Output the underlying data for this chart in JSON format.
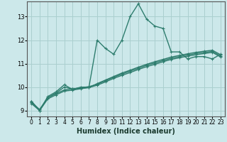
{
  "xlabel": "Humidex (Indice chaleur)",
  "bg_color": "#cce8ea",
  "grid_color": "#aacfcf",
  "line_color": "#2e7d6e",
  "xlim": [
    -0.5,
    23.5
  ],
  "ylim": [
    8.75,
    13.65
  ],
  "yticks": [
    9,
    10,
    11,
    12,
    13
  ],
  "xticks": [
    0,
    1,
    2,
    3,
    4,
    5,
    6,
    7,
    8,
    9,
    10,
    11,
    12,
    13,
    14,
    15,
    16,
    17,
    18,
    19,
    20,
    21,
    22,
    23
  ],
  "series": [
    [
      9.4,
      9.0,
      9.6,
      9.8,
      10.1,
      9.9,
      10.0,
      10.0,
      12.0,
      11.65,
      11.4,
      12.0,
      13.0,
      13.55,
      12.9,
      12.6,
      12.5,
      11.5,
      11.5,
      11.2,
      11.3,
      11.3,
      11.2,
      11.4
    ],
    [
      9.4,
      9.0,
      9.55,
      9.75,
      10.0,
      9.92,
      9.96,
      9.98,
      10.15,
      10.3,
      10.45,
      10.6,
      10.72,
      10.85,
      10.97,
      11.08,
      11.18,
      11.28,
      11.35,
      11.42,
      11.48,
      11.53,
      11.57,
      11.38
    ],
    [
      9.35,
      9.05,
      9.55,
      9.72,
      9.88,
      9.92,
      9.97,
      10.02,
      10.12,
      10.27,
      10.42,
      10.55,
      10.68,
      10.8,
      10.93,
      11.03,
      11.13,
      11.23,
      11.3,
      11.37,
      11.43,
      11.48,
      11.52,
      11.33
    ],
    [
      9.3,
      9.0,
      9.5,
      9.67,
      9.83,
      9.87,
      9.93,
      9.98,
      10.08,
      10.22,
      10.37,
      10.5,
      10.62,
      10.75,
      10.87,
      10.97,
      11.08,
      11.18,
      11.25,
      11.32,
      11.38,
      11.43,
      11.48,
      11.28
    ]
  ]
}
